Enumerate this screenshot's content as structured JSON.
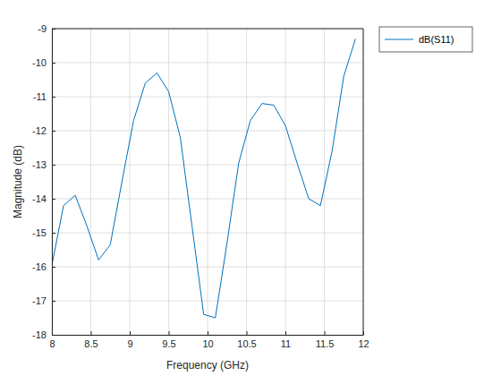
{
  "chart_data": {
    "type": "line",
    "x_label": "Frequency (GHz)",
    "y_label": "Magnitude (dB)",
    "x": [
      8.0,
      8.15,
      8.3,
      8.45,
      8.6,
      8.75,
      8.9,
      9.05,
      9.2,
      9.35,
      9.5,
      9.65,
      9.8,
      9.95,
      10.1,
      10.25,
      10.4,
      10.55,
      10.7,
      10.85,
      11.0,
      11.15,
      11.3,
      11.45,
      11.6,
      11.75,
      11.9
    ],
    "series": [
      {
        "name": "dB(S11)",
        "color": "#0072bd",
        "values": [
          -15.95,
          -14.2,
          -13.9,
          -14.8,
          -15.8,
          -15.35,
          -13.5,
          -11.7,
          -10.6,
          -10.3,
          -10.85,
          -12.2,
          -14.8,
          -17.4,
          -17.5,
          -15.3,
          -12.95,
          -11.7,
          -11.2,
          -11.25,
          -11.85,
          -12.95,
          -14.0,
          -14.2,
          -12.6,
          -10.4,
          -9.3
        ]
      }
    ],
    "xlim": [
      8,
      12
    ],
    "xticks": [
      8,
      8.5,
      9,
      9.5,
      10,
      10.5,
      11,
      11.5,
      12
    ],
    "ylim": [
      -18,
      -9
    ],
    "yticks": [
      -18,
      -17,
      -16,
      -15,
      -14,
      -13,
      -12,
      -11,
      -10,
      -9
    ],
    "grid": true,
    "legend": "northeastoutside"
  }
}
